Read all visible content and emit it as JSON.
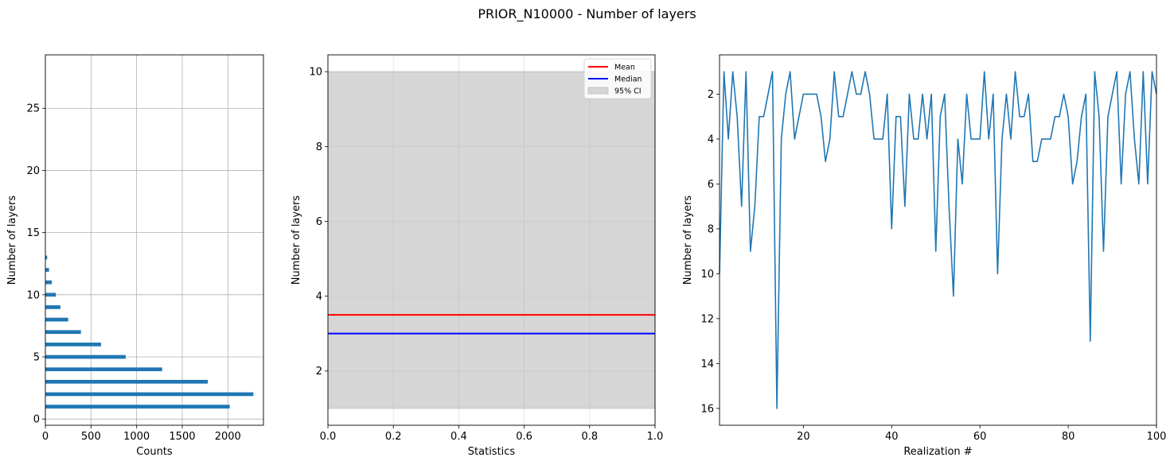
{
  "figure": {
    "title": "PRIOR_N10000 - Number of layers"
  },
  "chart_data": [
    {
      "type": "bar",
      "orientation": "horizontal",
      "xlabel": "Counts",
      "ylabel": "Number of layers",
      "xlim": [
        0,
        2390
      ],
      "ylim": [
        -0.5,
        29.3
      ],
      "xticks": [
        0,
        500,
        1000,
        1500,
        2000
      ],
      "yticks": [
        0,
        5,
        10,
        15,
        20,
        25
      ],
      "grid": true,
      "bar_color": "#1f77b4",
      "bars": [
        {
          "y": 1,
          "count": 2020
        },
        {
          "y": 2,
          "count": 2280
        },
        {
          "y": 3,
          "count": 1780
        },
        {
          "y": 4,
          "count": 1280
        },
        {
          "y": 5,
          "count": 880
        },
        {
          "y": 6,
          "count": 610
        },
        {
          "y": 7,
          "count": 390
        },
        {
          "y": 8,
          "count": 250
        },
        {
          "y": 9,
          "count": 165
        },
        {
          "y": 10,
          "count": 115
        },
        {
          "y": 11,
          "count": 70
        },
        {
          "y": 12,
          "count": 40
        },
        {
          "y": 13,
          "count": 20
        }
      ]
    },
    {
      "type": "line",
      "xlabel": "Statistics",
      "ylabel": "Number of layers",
      "xlim": [
        0,
        1
      ],
      "ylim": [
        0.55,
        10.45
      ],
      "xticks": [
        0.0,
        0.2,
        0.4,
        0.6,
        0.8,
        1.0
      ],
      "yticks": [
        2,
        4,
        6,
        8,
        10
      ],
      "grid": true,
      "legend_position": "top-right",
      "series": [
        {
          "name": "Mean",
          "value": 3.5,
          "color": "#ff0000"
        },
        {
          "name": "Median",
          "value": 3.0,
          "color": "#0000ff"
        }
      ],
      "band": {
        "name": "95% CI",
        "low": 1,
        "high": 10,
        "color": "#d6d6d6"
      }
    },
    {
      "type": "line",
      "xlabel": "Realization #",
      "ylabel": "Number of layers",
      "xlim": [
        1,
        100
      ],
      "ylim": [
        16.75,
        0.25
      ],
      "y_inverted": true,
      "xticks": [
        20,
        40,
        60,
        80,
        100
      ],
      "yticks": [
        2,
        4,
        6,
        8,
        10,
        12,
        14,
        16
      ],
      "grid": false,
      "line_color": "#1f77b4",
      "x": [
        1,
        2,
        3,
        4,
        5,
        6,
        7,
        8,
        9,
        10,
        11,
        12,
        13,
        14,
        15,
        16,
        17,
        18,
        19,
        20,
        21,
        22,
        23,
        24,
        25,
        26,
        27,
        28,
        29,
        30,
        31,
        32,
        33,
        34,
        35,
        36,
        37,
        38,
        39,
        40,
        41,
        42,
        43,
        44,
        45,
        46,
        47,
        48,
        49,
        50,
        51,
        52,
        53,
        54,
        55,
        56,
        57,
        58,
        59,
        60,
        61,
        62,
        63,
        64,
        65,
        66,
        67,
        68,
        69,
        70,
        71,
        72,
        73,
        74,
        75,
        76,
        77,
        78,
        79,
        80,
        81,
        82,
        83,
        84,
        85,
        86,
        87,
        88,
        89,
        90,
        91,
        92,
        93,
        94,
        95,
        96,
        97,
        98,
        99,
        100
      ],
      "y": [
        10,
        1,
        4,
        1,
        3,
        7,
        1,
        9,
        7,
        3,
        3,
        2,
        1,
        16,
        4,
        2,
        1,
        4,
        3,
        2,
        2,
        2,
        2,
        3,
        5,
        4,
        1,
        3,
        3,
        2,
        1,
        2,
        2,
        1,
        2,
        4,
        4,
        4,
        2,
        8,
        3,
        3,
        7,
        2,
        4,
        4,
        2,
        4,
        2,
        9,
        3,
        2,
        7,
        11,
        4,
        6,
        2,
        4,
        4,
        4,
        1,
        4,
        2,
        10,
        4,
        2,
        4,
        1,
        3,
        3,
        2,
        5,
        5,
        4,
        4,
        4,
        3,
        3,
        2,
        3,
        6,
        5,
        3,
        2,
        13,
        1,
        3,
        9,
        3,
        2,
        1,
        6,
        2,
        1,
        4,
        6,
        1,
        6,
        1,
        2
      ]
    }
  ]
}
